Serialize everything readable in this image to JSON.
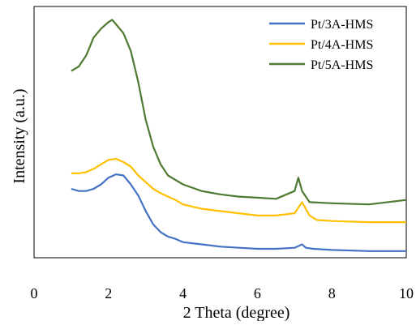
{
  "chart_data": {
    "type": "line",
    "xlabel": "2 Theta (degree)",
    "ylabel": "Intensity (a.u.)",
    "xlim": [
      0,
      10
    ],
    "x_ticks": [
      "0",
      "2",
      "4",
      "6",
      "8",
      "10"
    ],
    "y_ticks": [],
    "grid": false,
    "legend": "top-right",
    "series": [
      {
        "name": "Pt/3A-HMS",
        "color": "#4472C4",
        "points": [
          [
            1.0,
            0.31
          ],
          [
            1.2,
            0.3
          ],
          [
            1.4,
            0.3
          ],
          [
            1.6,
            0.31
          ],
          [
            1.8,
            0.33
          ],
          [
            2.0,
            0.36
          ],
          [
            2.2,
            0.375
          ],
          [
            2.4,
            0.37
          ],
          [
            2.6,
            0.33
          ],
          [
            2.8,
            0.28
          ],
          [
            3.0,
            0.21
          ],
          [
            3.2,
            0.15
          ],
          [
            3.4,
            0.115
          ],
          [
            3.6,
            0.095
          ],
          [
            3.8,
            0.085
          ],
          [
            4.0,
            0.07
          ],
          [
            4.5,
            0.06
          ],
          [
            5.0,
            0.05
          ],
          [
            5.5,
            0.045
          ],
          [
            6.0,
            0.04
          ],
          [
            6.5,
            0.04
          ],
          [
            7.0,
            0.045
          ],
          [
            7.2,
            0.06
          ],
          [
            7.3,
            0.045
          ],
          [
            7.5,
            0.04
          ],
          [
            8.0,
            0.035
          ],
          [
            9.0,
            0.03
          ],
          [
            10.0,
            0.03
          ]
        ]
      },
      {
        "name": "Pt/4A-HMS",
        "color": "#FFC000",
        "points": [
          [
            1.0,
            0.38
          ],
          [
            1.2,
            0.38
          ],
          [
            1.4,
            0.385
          ],
          [
            1.6,
            0.4
          ],
          [
            1.8,
            0.42
          ],
          [
            2.0,
            0.44
          ],
          [
            2.2,
            0.445
          ],
          [
            2.4,
            0.43
          ],
          [
            2.6,
            0.41
          ],
          [
            2.8,
            0.37
          ],
          [
            3.0,
            0.34
          ],
          [
            3.2,
            0.31
          ],
          [
            3.4,
            0.29
          ],
          [
            3.6,
            0.275
          ],
          [
            3.8,
            0.26
          ],
          [
            4.0,
            0.24
          ],
          [
            4.5,
            0.22
          ],
          [
            5.0,
            0.21
          ],
          [
            5.5,
            0.2
          ],
          [
            6.0,
            0.19
          ],
          [
            6.5,
            0.19
          ],
          [
            7.0,
            0.2
          ],
          [
            7.2,
            0.25
          ],
          [
            7.4,
            0.19
          ],
          [
            7.6,
            0.17
          ],
          [
            8.0,
            0.165
          ],
          [
            9.0,
            0.16
          ],
          [
            10.0,
            0.16
          ]
        ]
      },
      {
        "name": "Pt/5A-HMS",
        "color": "#4E7A32",
        "points": [
          [
            1.0,
            0.84
          ],
          [
            1.2,
            0.86
          ],
          [
            1.4,
            0.91
          ],
          [
            1.6,
            0.99
          ],
          [
            1.8,
            1.03
          ],
          [
            2.0,
            1.06
          ],
          [
            2.1,
            1.07
          ],
          [
            2.2,
            1.05
          ],
          [
            2.4,
            1.01
          ],
          [
            2.6,
            0.93
          ],
          [
            2.8,
            0.79
          ],
          [
            3.0,
            0.62
          ],
          [
            3.2,
            0.5
          ],
          [
            3.4,
            0.42
          ],
          [
            3.6,
            0.37
          ],
          [
            3.8,
            0.35
          ],
          [
            4.0,
            0.33
          ],
          [
            4.5,
            0.3
          ],
          [
            5.0,
            0.285
          ],
          [
            5.5,
            0.275
          ],
          [
            6.0,
            0.27
          ],
          [
            6.5,
            0.265
          ],
          [
            7.0,
            0.3
          ],
          [
            7.1,
            0.36
          ],
          [
            7.2,
            0.3
          ],
          [
            7.4,
            0.25
          ],
          [
            8.0,
            0.245
          ],
          [
            9.0,
            0.24
          ],
          [
            10.0,
            0.26
          ]
        ]
      }
    ]
  }
}
